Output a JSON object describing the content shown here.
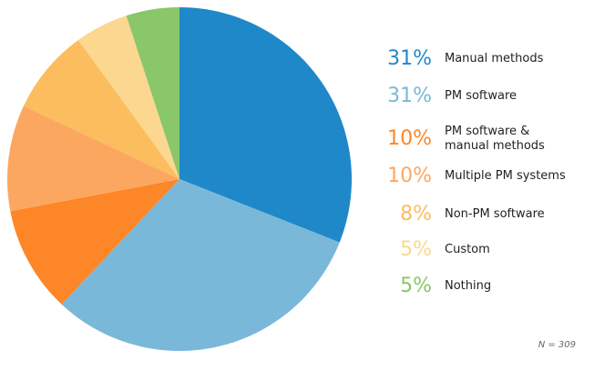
{
  "chart_data": {
    "type": "pie",
    "start": "top",
    "direction": "clockwise",
    "legend_placement": "right",
    "slices": [
      {
        "label": "Manual methods",
        "value": 31,
        "display": "31%",
        "color": "#1f88c9"
      },
      {
        "label": "PM software",
        "value": 31,
        "display": "31%",
        "color": "#7ab8d9"
      },
      {
        "label": "PM software & manual methods",
        "value": 10,
        "display": "10%",
        "color": "#fd8628"
      },
      {
        "label": "Multiple PM systems",
        "value": 10,
        "display": "10%",
        "color": "#fca760"
      },
      {
        "label": "Non-PM software",
        "value": 8,
        "display": "8%",
        "color": "#fbbd5d"
      },
      {
        "label": "Custom",
        "value": 5,
        "display": "5%",
        "color": "#fbd78f"
      },
      {
        "label": "Nothing",
        "value": 5,
        "display": "5%",
        "color": "#8ac66a"
      }
    ],
    "note": "N = 309"
  }
}
